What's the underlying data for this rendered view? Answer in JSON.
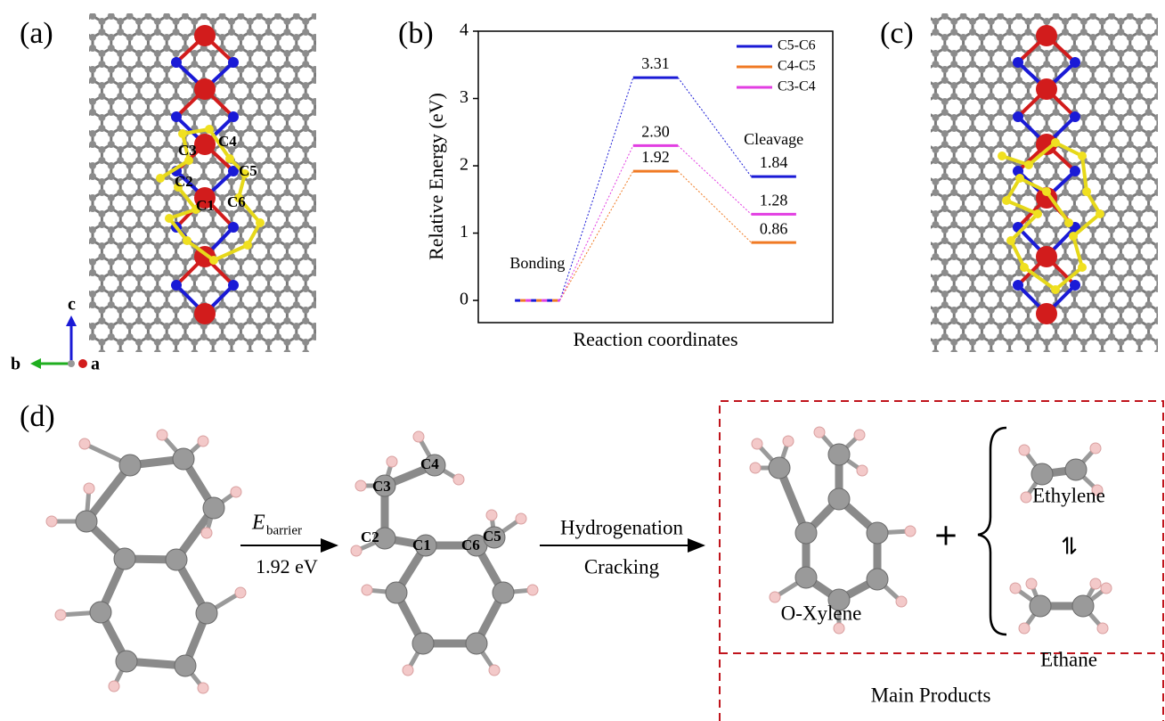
{
  "panel_a": {
    "label": "(a)",
    "atom_labels": [
      "C1",
      "C2",
      "C3",
      "C4",
      "C5",
      "C6"
    ],
    "axis_labels": [
      "a",
      "b",
      "c"
    ]
  },
  "panel_c": {
    "label": "(c)"
  },
  "panel_d": {
    "label": "(d)",
    "atom_labels": [
      "C1",
      "C2",
      "C3",
      "C4",
      "C5",
      "C6"
    ],
    "barrier_symbol": "E",
    "barrier_subscript": "barrier",
    "barrier_value": "1.92 eV",
    "step_top": "Hydrogenation",
    "step_bottom": "Cracking",
    "products": [
      "O-Xylene",
      "Ethylene",
      "Ethane"
    ],
    "plus": "+",
    "equilibrium": "⇌",
    "products_title": "Main Products"
  },
  "chart_data": {
    "type": "energy_levels",
    "label": "(b)",
    "x_label": "Reaction coordinates",
    "y_label": "Relative Energy (eV)",
    "categories": [
      "Bonding",
      null,
      "Cleavage"
    ],
    "series": [
      {
        "name": "C5-C6",
        "color": "#1a1ad6",
        "values": [
          0,
          3.31,
          1.84
        ],
        "value_labels": [
          null,
          "3.31",
          "1.84"
        ]
      },
      {
        "name": "C4-C5",
        "color": "#f07a24",
        "values": [
          0,
          1.92,
          0.86
        ],
        "value_labels": [
          null,
          "1.92",
          "0.86"
        ]
      },
      {
        "name": "C3-C4",
        "color": "#e23ee2",
        "values": [
          0,
          2.3,
          1.28
        ],
        "value_labels": [
          null,
          "2.30",
          "1.28"
        ]
      }
    ],
    "ylim": [
      -0.33,
      4
    ],
    "yticks": [
      0,
      1,
      2,
      3,
      4
    ],
    "legend": "upper right"
  }
}
